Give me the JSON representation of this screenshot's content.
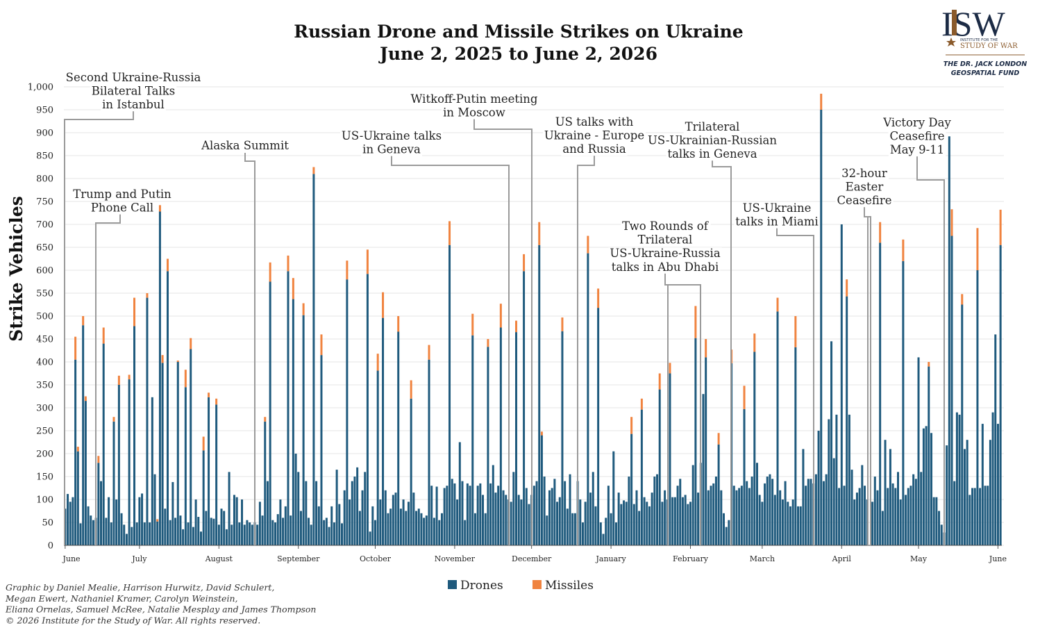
{
  "chart_data": {
    "type": "stacked_bar",
    "title": "Russian Drone and Missile Strikes on Ukraine",
    "subtitle": "June 2, 2025 to June 2, 2026",
    "y_label": "Strike Vehicles",
    "ylim": [
      0,
      1000
    ],
    "yticks": [
      0,
      50,
      100,
      150,
      200,
      250,
      300,
      350,
      400,
      450,
      500,
      550,
      600,
      650,
      700,
      750,
      800,
      850,
      900,
      950,
      {
        "value": 1000,
        "label": "1,000"
      }
    ],
    "grid": true,
    "categories": [
      "June",
      null,
      null,
      null,
      null,
      null,
      null,
      null,
      null,
      null,
      null,
      null,
      null,
      null,
      null,
      null,
      null,
      null,
      null,
      null,
      null,
      null,
      null,
      null,
      null,
      null,
      null,
      null,
      null,
      "July",
      null,
      null,
      null,
      null,
      null,
      null,
      null,
      null,
      null,
      null,
      null,
      null,
      null,
      null,
      null,
      null,
      null,
      null,
      null,
      null,
      null,
      null,
      null,
      null,
      null,
      null,
      null,
      null,
      null,
      null,
      "August",
      null,
      null,
      null,
      null,
      null,
      null,
      null,
      null,
      null,
      null,
      null,
      null,
      null,
      null,
      null,
      null,
      null,
      null,
      null,
      null,
      null,
      null,
      null,
      null,
      null,
      null,
      null,
      null,
      null,
      null,
      "September",
      null,
      null,
      null,
      null,
      null,
      null,
      null,
      null,
      null,
      null,
      null,
      null,
      null,
      null,
      null,
      null,
      null,
      null,
      null,
      null,
      null,
      null,
      null,
      null,
      null,
      null,
      null,
      null,
      null,
      "October",
      null,
      null,
      null,
      null,
      null,
      null,
      null,
      null,
      null,
      null,
      null,
      null,
      null,
      null,
      null,
      null,
      null,
      null,
      null,
      null,
      null,
      null,
      null,
      null,
      null,
      null,
      null,
      null,
      null,
      null,
      "November",
      null,
      null,
      null,
      null,
      null,
      null,
      null,
      null,
      null,
      null,
      null,
      null,
      null,
      null,
      null,
      null,
      null,
      null,
      null,
      null,
      null,
      null,
      null,
      null,
      null,
      null,
      null,
      null,
      null,
      "December",
      null,
      null,
      null,
      null,
      null,
      null,
      null,
      null,
      null,
      null,
      null,
      null,
      null,
      null,
      null,
      null,
      null,
      null,
      null,
      null,
      null,
      null,
      null,
      null,
      null,
      null,
      null,
      null,
      null,
      null,
      "January",
      null,
      null,
      null,
      null,
      null,
      null,
      null,
      null,
      null,
      null,
      null,
      null,
      null,
      null,
      null,
      null,
      null,
      null,
      null,
      null,
      null,
      null,
      null,
      null,
      null,
      null,
      null,
      null,
      null,
      null,
      "February",
      null,
      null,
      null,
      null,
      null,
      null,
      null,
      null,
      null,
      null,
      null,
      null,
      null,
      null,
      null,
      null,
      null,
      null,
      null,
      null,
      null,
      null,
      null,
      null,
      null,
      null,
      null,
      "March",
      null,
      null,
      null,
      null,
      null,
      null,
      null,
      null,
      null,
      null,
      null,
      null,
      null,
      null,
      null,
      null,
      null,
      null,
      null,
      null,
      null,
      null,
      null,
      null,
      null,
      null,
      null,
      null,
      null,
      null,
      "April",
      null,
      null,
      null,
      null,
      null,
      null,
      null,
      null,
      null,
      null,
      null,
      null,
      null,
      null,
      null,
      null,
      null,
      null,
      null,
      null,
      null,
      null,
      null,
      null,
      null,
      null,
      null,
      null,
      null,
      "May",
      null,
      null,
      null,
      null,
      null,
      null,
      null,
      null,
      null,
      null,
      null,
      null,
      null,
      null,
      null,
      null,
      null,
      null,
      null,
      null,
      null,
      null,
      null,
      null,
      null,
      null,
      null,
      null,
      null,
      null,
      "June",
      null
    ],
    "series": [
      {
        "name": "Drones",
        "color": "#1f5a7d",
        "values": [
          80,
          112,
          95,
          105,
          405,
          205,
          48,
          480,
          315,
          85,
          65,
          55,
          60,
          180,
          140,
          440,
          60,
          105,
          50,
          270,
          100,
          350,
          70,
          45,
          25,
          362,
          40,
          478,
          50,
          105,
          113,
          50,
          540,
          50,
          323,
          155,
          52,
          728,
          398,
          80,
          598,
          55,
          138,
          60,
          400,
          65,
          35,
          345,
          50,
          428,
          40,
          100,
          62,
          30,
          207,
          75,
          323,
          60,
          58,
          307,
          45,
          80,
          75,
          35,
          160,
          45,
          110,
          105,
          50,
          100,
          45,
          55,
          50,
          45,
          50,
          45,
          95,
          65,
          270,
          140,
          575,
          55,
          50,
          68,
          100,
          60,
          85,
          598,
          65,
          537,
          200,
          160,
          75,
          502,
          140,
          60,
          45,
          810,
          140,
          85,
          415,
          55,
          60,
          40,
          85,
          50,
          165,
          90,
          48,
          120,
          580,
          100,
          140,
          150,
          170,
          75,
          120,
          160,
          592,
          30,
          85,
          55,
          381,
          100,
          496,
          120,
          70,
          80,
          110,
          115,
          466,
          80,
          100,
          75,
          95,
          320,
          115,
          75,
          80,
          70,
          60,
          65,
          405,
          130,
          60,
          128,
          55,
          70,
          125,
          130,
          655,
          145,
          135,
          100,
          225,
          140,
          55,
          135,
          130,
          458,
          70,
          130,
          135,
          110,
          70,
          433,
          135,
          175,
          115,
          130,
          475,
          120,
          110,
          100,
          95,
          160,
          465,
          110,
          100,
          598,
          125,
          90,
          110,
          130,
          140,
          655,
          240,
          150,
          65,
          120,
          125,
          145,
          95,
          105,
          467,
          140,
          80,
          155,
          70,
          70,
          140,
          100,
          50,
          95,
          637,
          115,
          160,
          85,
          518,
          50,
          25,
          60,
          130,
          70,
          205,
          50,
          115,
          90,
          98,
          95,
          150,
          243,
          90,
          120,
          75,
          296,
          105,
          95,
          85,
          115,
          150,
          155,
          340,
          95,
          120,
          100,
          375,
          105,
          105,
          130,
          145,
          105,
          110,
          90,
          95,
          175,
          452,
          115,
          180,
          330,
          410,
          120,
          130,
          135,
          150,
          220,
          120,
          70,
          40,
          55,
          397,
          130,
          120,
          125,
          130,
          297,
          140,
          125,
          150,
          422,
          180,
          110,
          95,
          135,
          150,
          155,
          145,
          110,
          510,
          120,
          100,
          140,
          95,
          85,
          100,
          432,
          85,
          85,
          210,
          130,
          145,
          145,
          135,
          155,
          250,
          950,
          140,
          155,
          275,
          445,
          190,
          285,
          125,
          700,
          130,
          543,
          285,
          165,
          100,
          115,
          125,
          175,
          130,
          100,
          0,
          95,
          150,
          120,
          660,
          75,
          230,
          125,
          210,
          135,
          125,
          160,
          100,
          620,
          110,
          125,
          130,
          155,
          145,
          410,
          160,
          255,
          260,
          390,
          245,
          105,
          105,
          75,
          45,
          28,
          218,
          892,
          675,
          140,
          290,
          285,
          525,
          210,
          230,
          110,
          125,
          125,
          600,
          125,
          265,
          130,
          130,
          230,
          290,
          460,
          265,
          655
        ]
      },
      {
        "name": "Missiles",
        "color": "#f0833f",
        "values": [
          0,
          0,
          0,
          0,
          50,
          10,
          0,
          20,
          10,
          0,
          0,
          0,
          0,
          15,
          0,
          35,
          0,
          0,
          0,
          10,
          0,
          20,
          0,
          0,
          0,
          10,
          0,
          62,
          0,
          0,
          0,
          0,
          10,
          0,
          0,
          0,
          5,
          14,
          17,
          0,
          27,
          0,
          0,
          0,
          3,
          0,
          0,
          38,
          0,
          24,
          0,
          0,
          0,
          0,
          30,
          0,
          10,
          0,
          0,
          13,
          0,
          0,
          0,
          0,
          0,
          0,
          0,
          0,
          0,
          0,
          0,
          0,
          0,
          0,
          0,
          0,
          0,
          0,
          10,
          0,
          42,
          0,
          0,
          0,
          0,
          0,
          0,
          34,
          0,
          46,
          0,
          0,
          0,
          26,
          0,
          0,
          0,
          15,
          0,
          0,
          45,
          0,
          0,
          0,
          0,
          0,
          0,
          0,
          0,
          0,
          41,
          0,
          0,
          0,
          0,
          0,
          0,
          0,
          53,
          0,
          0,
          0,
          37,
          0,
          56,
          0,
          0,
          0,
          0,
          0,
          34,
          0,
          0,
          0,
          0,
          40,
          0,
          0,
          0,
          0,
          0,
          0,
          32,
          0,
          0,
          0,
          0,
          0,
          0,
          0,
          52,
          0,
          0,
          0,
          0,
          0,
          0,
          0,
          0,
          47,
          0,
          0,
          0,
          0,
          0,
          17,
          0,
          0,
          0,
          0,
          52,
          0,
          0,
          0,
          0,
          0,
          25,
          0,
          0,
          37,
          0,
          0,
          0,
          0,
          0,
          50,
          8,
          0,
          0,
          0,
          0,
          0,
          0,
          0,
          30,
          0,
          0,
          0,
          0,
          0,
          0,
          0,
          0,
          0,
          38,
          0,
          0,
          0,
          42,
          0,
          0,
          0,
          0,
          0,
          0,
          0,
          0,
          0,
          0,
          0,
          0,
          37,
          0,
          0,
          0,
          24,
          0,
          0,
          0,
          0,
          0,
          0,
          35,
          0,
          0,
          0,
          23,
          0,
          0,
          0,
          0,
          0,
          0,
          0,
          0,
          0,
          70,
          0,
          0,
          0,
          40,
          0,
          0,
          0,
          0,
          25,
          0,
          0,
          0,
          0,
          30,
          0,
          0,
          0,
          0,
          51,
          0,
          0,
          0,
          40,
          0,
          0,
          0,
          0,
          0,
          0,
          0,
          0,
          30,
          0,
          0,
          0,
          0,
          0,
          0,
          68,
          0,
          0,
          0,
          0,
          0,
          0,
          0,
          0,
          0,
          35,
          0,
          0,
          0,
          0,
          0,
          0,
          0,
          0,
          0,
          37,
          0,
          0,
          0,
          0,
          0,
          0,
          0,
          0,
          0,
          0,
          0,
          0,
          45,
          0,
          0,
          0,
          0,
          0,
          0,
          0,
          0,
          47,
          0,
          0,
          0,
          0,
          0,
          0,
          0,
          0,
          0,
          10,
          0,
          0,
          0,
          0,
          0,
          0,
          0,
          0,
          58,
          0,
          0,
          0,
          23,
          0,
          0,
          0,
          0,
          0,
          92,
          0,
          0,
          0,
          0,
          0,
          0,
          0,
          0,
          77
        ]
      }
    ],
    "annotations": [
      [
        "Second Ukraine-Russia",
        "Bilateral Talks",
        "in Istanbul"
      ],
      [
        "Trump and Putin",
        "Phone Call"
      ],
      [
        "Alaska Summit"
      ],
      [
        "US-Ukraine talks",
        "in Geneva"
      ],
      [
        "Witkoff-Putin meeting",
        "in Moscow"
      ],
      [
        "US talks with",
        "Ukraine - Europe",
        "and Russia"
      ],
      [
        "Trilateral",
        "US-Ukrainian-Russian",
        "talks in Geneva"
      ],
      [
        "Two Rounds of",
        "Trilateral",
        "US-Ukraine-Russia",
        "talks in Abu Dhabi"
      ],
      [
        "US-Ukraine",
        "talks in Miami"
      ],
      [
        "32-hour",
        "Easter",
        "Ceasefire"
      ],
      [
        "Victory Day",
        "Ceasefire",
        "May 9-11"
      ]
    ],
    "credits": [
      "Graphic by Daniel Mealie, Harrison Hurwitz, David Schulert,",
      "Megan Ewert, Nathaniel Kramer, Carolyn Weinstein,",
      "Eliana Ornelas, Samuel McRee, Natalie Mesplay and James Thompson",
      "© 2026 Institute for the Study of War. All rights reserved."
    ]
  },
  "logo": {
    "mark": "ISW",
    "line1": "INSTITUTE FOR THE",
    "line2": "STUDY OF WAR",
    "fund1": "THE DR. JACK LONDON",
    "fund2": "GEOSPATIAL FUND"
  }
}
